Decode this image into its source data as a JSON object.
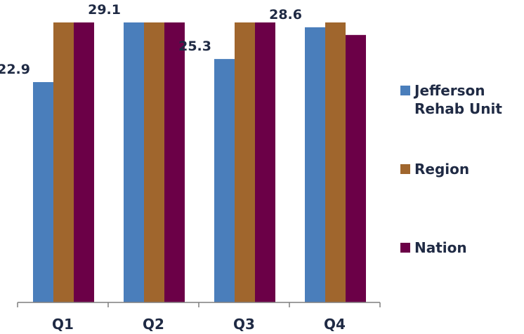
{
  "chart_data": {
    "type": "bar",
    "title": "",
    "xlabel": "",
    "ylabel": "",
    "categories": [
      "Q1",
      "Q2",
      "Q3",
      "Q4"
    ],
    "ylim": [
      0,
      29.1
    ],
    "grid": false,
    "legend_position": "right",
    "series": [
      {
        "name": "Jefferson Rehab Unit",
        "color": "#4a7ebb",
        "values": [
          22.9,
          29.1,
          25.3,
          28.6
        ],
        "data_labels": [
          "22.9",
          "29.1",
          "25.3",
          "28.6"
        ]
      },
      {
        "name": "Region",
        "color": "#a0662d",
        "values": [
          29.1,
          29.1,
          29.1,
          29.1
        ]
      },
      {
        "name": "Nation",
        "color": "#6b0047",
        "values": [
          29.1,
          29.1,
          29.1,
          27.8
        ]
      }
    ]
  }
}
